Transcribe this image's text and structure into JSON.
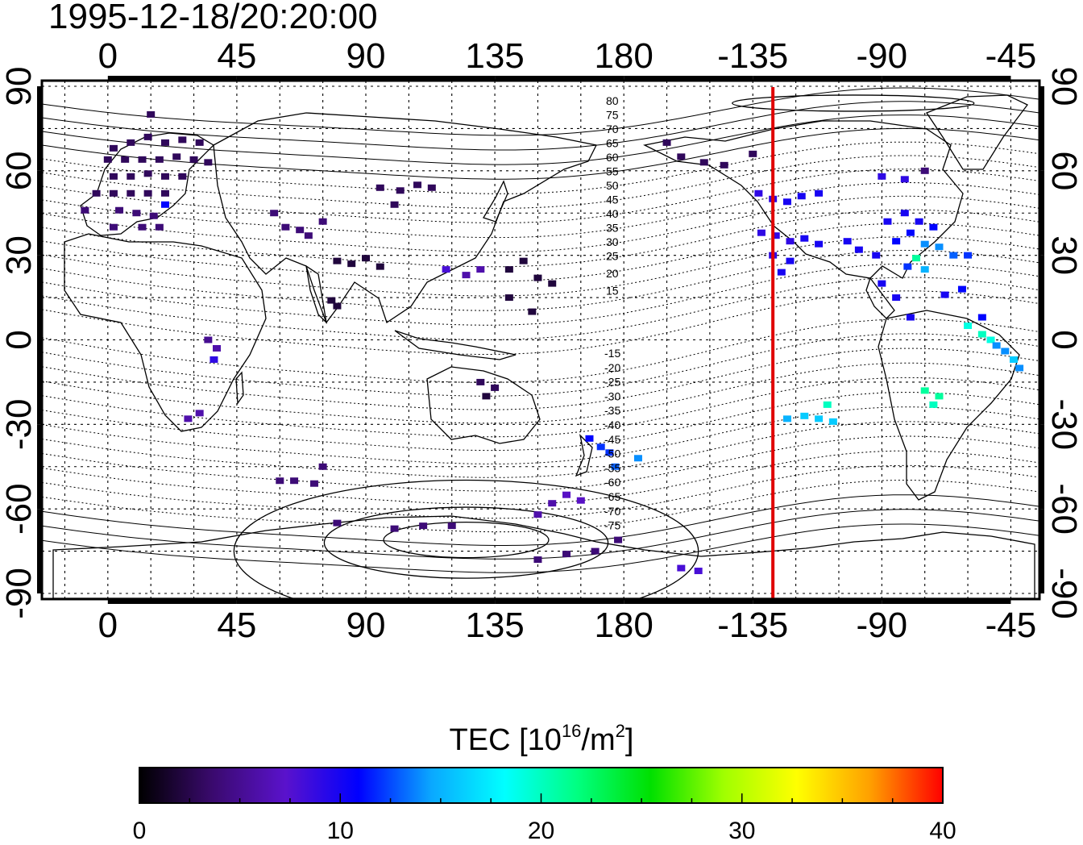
{
  "title": "1995-12-18/20:20:00",
  "axes": {
    "lon_ticks": [
      "0",
      "45",
      "90",
      "135",
      "180",
      "-135",
      "-90",
      "-45"
    ],
    "lat_ticks": [
      "90",
      "60",
      "30",
      "0",
      "-30",
      "-60",
      "-90"
    ]
  },
  "map": {
    "lon_range": [
      -23,
      325
    ],
    "lat_range": [
      -92,
      92
    ],
    "grid": true,
    "red_line_lon": -128,
    "colors": {
      "red_line": "#e00000",
      "coastline": "#000000",
      "grid": "#000000"
    }
  },
  "contours": {
    "north_labels": [
      "80",
      "75",
      "70",
      "65",
      "60",
      "55",
      "50",
      "45",
      "40",
      "35",
      "30",
      "25",
      "20",
      "15"
    ],
    "south_labels": [
      "-15",
      "-20",
      "-25",
      "-30",
      "-35",
      "-40",
      "-45",
      "-50",
      "-55",
      "-60",
      "-65",
      "-70",
      "-75"
    ]
  },
  "colorbar": {
    "title_prefix": "TEC  [10",
    "title_exp": "16",
    "title_mid": "/m",
    "title_exp2": "2",
    "title_suffix": "]",
    "ticks": [
      "0",
      "10",
      "20",
      "30",
      "40"
    ],
    "min": 0,
    "max": 40,
    "stops": [
      "#000000",
      "#3a0a6e",
      "#5a12cc",
      "#0000ff",
      "#0aa8ff",
      "#00ffff",
      "#00ff80",
      "#00e000",
      "#a0ff00",
      "#ffff00",
      "#ffa000",
      "#ff0000"
    ]
  },
  "tec_points": [
    {
      "lon": 2,
      "lat": 68,
      "tec": 3
    },
    {
      "lon": 8,
      "lat": 70,
      "tec": 3
    },
    {
      "lon": 14,
      "lat": 72,
      "tec": 3
    },
    {
      "lon": 20,
      "lat": 70,
      "tec": 3
    },
    {
      "lon": 26,
      "lat": 71,
      "tec": 3
    },
    {
      "lon": 32,
      "lat": 70,
      "tec": 3
    },
    {
      "lon": 0,
      "lat": 64,
      "tec": 3
    },
    {
      "lon": 6,
      "lat": 64,
      "tec": 3
    },
    {
      "lon": 12,
      "lat": 64,
      "tec": 3
    },
    {
      "lon": 18,
      "lat": 64,
      "tec": 3
    },
    {
      "lon": 24,
      "lat": 65,
      "tec": 3
    },
    {
      "lon": 30,
      "lat": 64,
      "tec": 3
    },
    {
      "lon": 2,
      "lat": 58,
      "tec": 3
    },
    {
      "lon": 8,
      "lat": 58,
      "tec": 3
    },
    {
      "lon": 14,
      "lat": 59,
      "tec": 3
    },
    {
      "lon": 20,
      "lat": 58,
      "tec": 3
    },
    {
      "lon": 26,
      "lat": 58,
      "tec": 3
    },
    {
      "lon": -4,
      "lat": 52,
      "tec": 3
    },
    {
      "lon": 2,
      "lat": 52,
      "tec": 3
    },
    {
      "lon": 8,
      "lat": 52,
      "tec": 3
    },
    {
      "lon": 14,
      "lat": 52,
      "tec": 3
    },
    {
      "lon": 20,
      "lat": 52,
      "tec": 3
    },
    {
      "lon": -8,
      "lat": 46,
      "tec": 4
    },
    {
      "lon": 4,
      "lat": 46,
      "tec": 4
    },
    {
      "lon": 10,
      "lat": 45,
      "tec": 4
    },
    {
      "lon": 16,
      "lat": 44,
      "tec": 4
    },
    {
      "lon": 2,
      "lat": 40,
      "tec": 4
    },
    {
      "lon": 12,
      "lat": 40,
      "tec": 4
    },
    {
      "lon": 18,
      "lat": 40,
      "tec": 4
    },
    {
      "lon": 20,
      "lat": 48,
      "tec": 11
    },
    {
      "lon": 15,
      "lat": 80,
      "tec": 3
    },
    {
      "lon": 35,
      "lat": 63,
      "tec": 3
    },
    {
      "lon": 95,
      "lat": 54,
      "tec": 3
    },
    {
      "lon": 102,
      "lat": 53,
      "tec": 3
    },
    {
      "lon": 108,
      "lat": 55,
      "tec": 3
    },
    {
      "lon": 113,
      "lat": 54,
      "tec": 3
    },
    {
      "lon": 100,
      "lat": 48,
      "tec": 3
    },
    {
      "lon": 62,
      "lat": 40,
      "tec": 4
    },
    {
      "lon": 67,
      "lat": 39,
      "tec": 4
    },
    {
      "lon": 70,
      "lat": 37,
      "tec": 4
    },
    {
      "lon": 75,
      "lat": 42,
      "tec": 4
    },
    {
      "lon": 58,
      "lat": 45,
      "tec": 4
    },
    {
      "lon": 80,
      "lat": 28,
      "tec": 2
    },
    {
      "lon": 85,
      "lat": 27,
      "tec": 2
    },
    {
      "lon": 90,
      "lat": 29,
      "tec": 2
    },
    {
      "lon": 95,
      "lat": 26,
      "tec": 2
    },
    {
      "lon": 78,
      "lat": 14,
      "tec": 2
    },
    {
      "lon": 80,
      "lat": 12,
      "tec": 2
    },
    {
      "lon": 140,
      "lat": 25,
      "tec": 2
    },
    {
      "lon": 145,
      "lat": 28,
      "tec": 2
    },
    {
      "lon": 150,
      "lat": 22,
      "tec": 2
    },
    {
      "lon": 155,
      "lat": 20,
      "tec": 2
    },
    {
      "lon": 140,
      "lat": 15,
      "tec": 2
    },
    {
      "lon": 148,
      "lat": 10,
      "tec": 2
    },
    {
      "lon": 125,
      "lat": 23,
      "tec": 6
    },
    {
      "lon": 130,
      "lat": 25,
      "tec": 6
    },
    {
      "lon": 118,
      "lat": 25,
      "tec": 8
    },
    {
      "lon": 35,
      "lat": 0,
      "tec": 5
    },
    {
      "lon": 38,
      "lat": -3,
      "tec": 6
    },
    {
      "lon": 37,
      "lat": -7,
      "tec": 9
    },
    {
      "lon": 32,
      "lat": -26,
      "tec": 6
    },
    {
      "lon": 28,
      "lat": -28,
      "tec": 6
    },
    {
      "lon": 130,
      "lat": -15,
      "tec": 3
    },
    {
      "lon": 135,
      "lat": -17,
      "tec": 3
    },
    {
      "lon": 132,
      "lat": -20,
      "tec": 2
    },
    {
      "lon": 60,
      "lat": -50,
      "tec": 4
    },
    {
      "lon": 65,
      "lat": -50,
      "tec": 4
    },
    {
      "lon": 72,
      "lat": -51,
      "tec": 4
    },
    {
      "lon": 75,
      "lat": -45,
      "tec": 4
    },
    {
      "lon": 168,
      "lat": -35,
      "tec": 11
    },
    {
      "lon": 172,
      "lat": -38,
      "tec": 12
    },
    {
      "lon": 175,
      "lat": -40,
      "tec": 12
    },
    {
      "lon": 177,
      "lat": -45,
      "tec": 13
    },
    {
      "lon": 185,
      "lat": -42,
      "tec": 14
    },
    {
      "lon": 155,
      "lat": -58,
      "tec": 6
    },
    {
      "lon": 160,
      "lat": -55,
      "tec": 7
    },
    {
      "lon": 165,
      "lat": -57,
      "tec": 7
    },
    {
      "lon": 150,
      "lat": -62,
      "tec": 6
    },
    {
      "lon": 80,
      "lat": -65,
      "tec": 4
    },
    {
      "lon": 100,
      "lat": -67,
      "tec": 4
    },
    {
      "lon": 110,
      "lat": -66,
      "tec": 4
    },
    {
      "lon": 120,
      "lat": -66,
      "tec": 4
    },
    {
      "lon": 150,
      "lat": -78,
      "tec": 4
    },
    {
      "lon": 160,
      "lat": -76,
      "tec": 4
    },
    {
      "lon": 170,
      "lat": -75,
      "tec": 4
    },
    {
      "lon": 178,
      "lat": -71,
      "tec": 4
    },
    {
      "lon": 200,
      "lat": -81,
      "tec": 8
    },
    {
      "lon": 206,
      "lat": -82,
      "tec": 8
    },
    {
      "lon": 200,
      "lat": 65,
      "tec": 3
    },
    {
      "lon": 208,
      "lat": 63,
      "tec": 3
    },
    {
      "lon": 215,
      "lat": 62,
      "tec": 3
    },
    {
      "lon": 225,
      "lat": 66,
      "tec": 3
    },
    {
      "lon": 195,
      "lat": 70,
      "tec": 3
    },
    {
      "lon": 227,
      "lat": 52,
      "tec": 9
    },
    {
      "lon": 232,
      "lat": 50,
      "tec": 9
    },
    {
      "lon": 237,
      "lat": 49,
      "tec": 10
    },
    {
      "lon": 242,
      "lat": 51,
      "tec": 10
    },
    {
      "lon": 248,
      "lat": 52,
      "tec": 10
    },
    {
      "lon": 228,
      "lat": 38,
      "tec": 9
    },
    {
      "lon": 233,
      "lat": 37,
      "tec": 9
    },
    {
      "lon": 238,
      "lat": 35,
      "tec": 9
    },
    {
      "lon": 243,
      "lat": 36,
      "tec": 10
    },
    {
      "lon": 248,
      "lat": 34,
      "tec": 10
    },
    {
      "lon": 232,
      "lat": 30,
      "tec": 9
    },
    {
      "lon": 238,
      "lat": 28,
      "tec": 10
    },
    {
      "lon": 235,
      "lat": 24,
      "tec": 10
    },
    {
      "lon": 258,
      "lat": 35,
      "tec": 10
    },
    {
      "lon": 262,
      "lat": 32,
      "tec": 10
    },
    {
      "lon": 268,
      "lat": 30,
      "tec": 10
    },
    {
      "lon": 272,
      "lat": 42,
      "tec": 10
    },
    {
      "lon": 278,
      "lat": 45,
      "tec": 10
    },
    {
      "lon": 283,
      "lat": 42,
      "tec": 10
    },
    {
      "lon": 288,
      "lat": 40,
      "tec": 11
    },
    {
      "lon": 280,
      "lat": 38,
      "tec": 11
    },
    {
      "lon": 275,
      "lat": 35,
      "tec": 11
    },
    {
      "lon": 285,
      "lat": 34,
      "tec": 14
    },
    {
      "lon": 290,
      "lat": 33,
      "tec": 14
    },
    {
      "lon": 295,
      "lat": 30,
      "tec": 13
    },
    {
      "lon": 282,
      "lat": 29,
      "tec": 21
    },
    {
      "lon": 279,
      "lat": 26,
      "tec": 12
    },
    {
      "lon": 285,
      "lat": 25,
      "tec": 15
    },
    {
      "lon": 300,
      "lat": 30,
      "tec": 12
    },
    {
      "lon": 298,
      "lat": 18,
      "tec": 11
    },
    {
      "lon": 292,
      "lat": 16,
      "tec": 10
    },
    {
      "lon": 270,
      "lat": 58,
      "tec": 9
    },
    {
      "lon": 278,
      "lat": 57,
      "tec": 9
    },
    {
      "lon": 285,
      "lat": 60,
      "tec": 4
    },
    {
      "lon": 270,
      "lat": 20,
      "tec": 10
    },
    {
      "lon": 275,
      "lat": 15,
      "tec": 10
    },
    {
      "lon": 280,
      "lat": 8,
      "tec": 10
    },
    {
      "lon": 305,
      "lat": 8,
      "tec": 11
    },
    {
      "lon": 300,
      "lat": 5,
      "tec": 19
    },
    {
      "lon": 305,
      "lat": 2,
      "tec": 20
    },
    {
      "lon": 308,
      "lat": 0,
      "tec": 19
    },
    {
      "lon": 310,
      "lat": -2,
      "tec": 14
    },
    {
      "lon": 313,
      "lat": -4,
      "tec": 14
    },
    {
      "lon": 316,
      "lat": -7,
      "tec": 16
    },
    {
      "lon": 318,
      "lat": -10,
      "tec": 14
    },
    {
      "lon": 285,
      "lat": -18,
      "tec": 21
    },
    {
      "lon": 290,
      "lat": -20,
      "tec": 21
    },
    {
      "lon": 288,
      "lat": -23,
      "tec": 20
    },
    {
      "lon": 237,
      "lat": -28,
      "tec": 15
    },
    {
      "lon": 243,
      "lat": -27,
      "tec": 16
    },
    {
      "lon": 248,
      "lat": -28,
      "tec": 16
    },
    {
      "lon": 253,
      "lat": -29,
      "tec": 16
    },
    {
      "lon": 251,
      "lat": -23,
      "tec": 20
    }
  ]
}
